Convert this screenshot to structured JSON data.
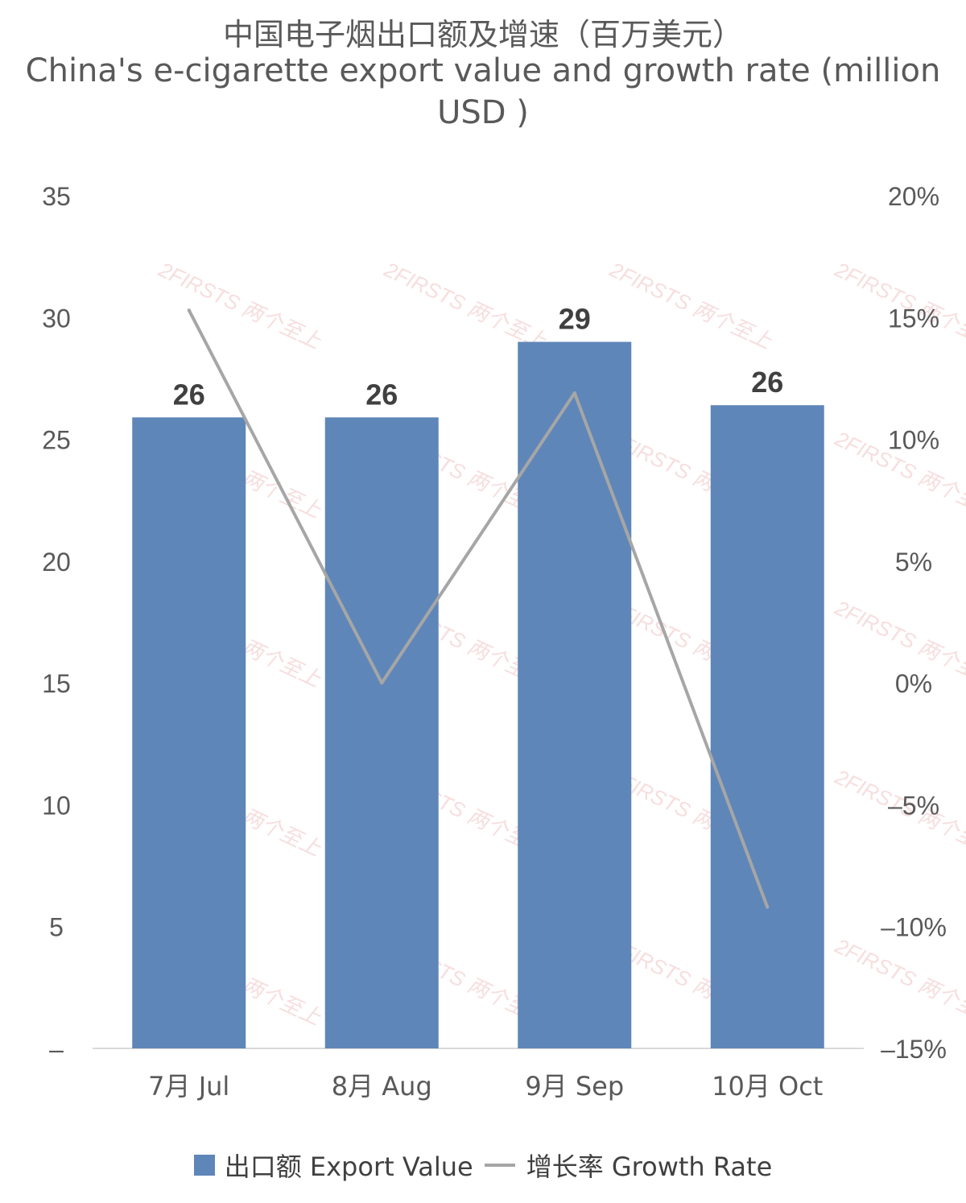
{
  "chart_data": {
    "type": "bar+line",
    "title": "中国电子烟出口额及增速（百万美元）",
    "subtitle": "China's e-cigarette export value and growth rate (million USD )",
    "categories": [
      "7月 Jul",
      "8月 Aug",
      "9月 Sep",
      "10月 Oct"
    ],
    "series": [
      {
        "name": "出口额 Export Value",
        "type": "bar",
        "axis": "left",
        "values": [
          25.9,
          25.9,
          29.0,
          26.4
        ],
        "labels": [
          "26",
          "26",
          "29",
          "26"
        ]
      },
      {
        "name": "增长率 Growth Rate",
        "type": "line",
        "axis": "right",
        "values": [
          15.3,
          0.0,
          11.9,
          -9.2
        ]
      }
    ],
    "y_left": {
      "min": 0,
      "max": 35,
      "ticks": [
        0,
        5,
        10,
        15,
        20,
        25,
        30,
        35
      ],
      "tick_labels": [
        "–",
        "5",
        "10",
        "15",
        "20",
        "25",
        "30",
        "35"
      ]
    },
    "y_right": {
      "min": -15,
      "max": 20,
      "ticks": [
        -15,
        -10,
        -5,
        0,
        5,
        10,
        15,
        20
      ],
      "tick_labels": [
        "–15%",
        "–10%",
        "–5%",
        "0%",
        "5%",
        "10%",
        "15%",
        "20%"
      ]
    },
    "legend_position": "bottom",
    "grid": false,
    "colors": {
      "bar": "#5f86b8",
      "line": "#a6a6a6",
      "text": "#404040",
      "axis_text": "#595959",
      "watermark": "#e8a0a0"
    }
  },
  "watermark": {
    "text": "2FIRSTS 两个至上"
  }
}
